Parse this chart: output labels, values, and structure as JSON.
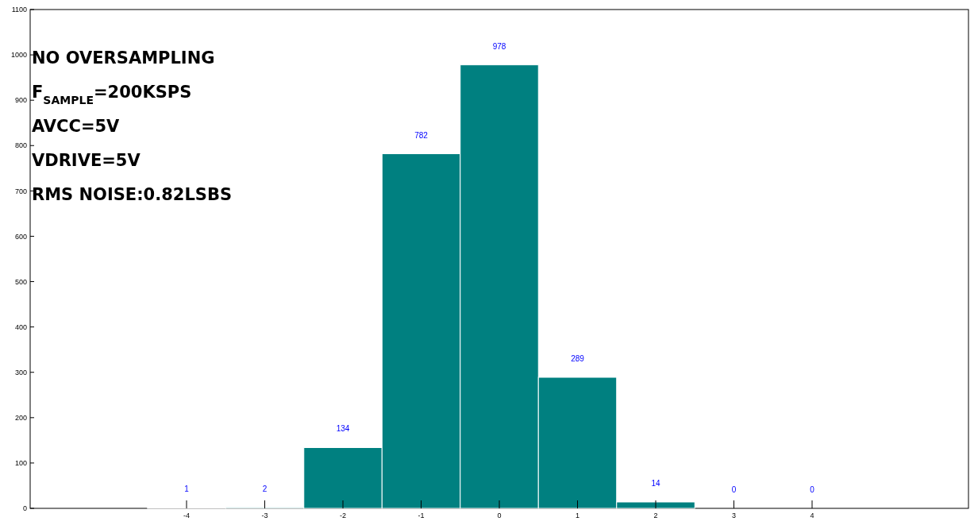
{
  "chart_data": {
    "type": "histogram",
    "bins": [
      -4.5,
      -3.5,
      -2.5,
      -1.5,
      -0.5,
      0.5,
      1.5,
      2.5,
      3.5,
      4.5
    ],
    "values": [
      1,
      2,
      134,
      782,
      978,
      289,
      14,
      0,
      0
    ],
    "color": "#008080",
    "xlim": [
      -6,
      6
    ],
    "xticks": [
      -4,
      -3,
      -2,
      -1,
      0,
      1,
      2,
      3,
      4
    ],
    "ylim": [
      0,
      1100
    ],
    "yticks": [
      0,
      100,
      200,
      300,
      400,
      500,
      600,
      700,
      800,
      900,
      1000,
      1100
    ],
    "grid": false,
    "data_labels": true,
    "annotations": [
      "NO OVERSAMPLING",
      "F$_{SAMPLE}$=200KSPS",
      "AVCC=5V",
      "VDRIVE=5V",
      "RMS NOISE:0.82LSBS"
    ]
  }
}
